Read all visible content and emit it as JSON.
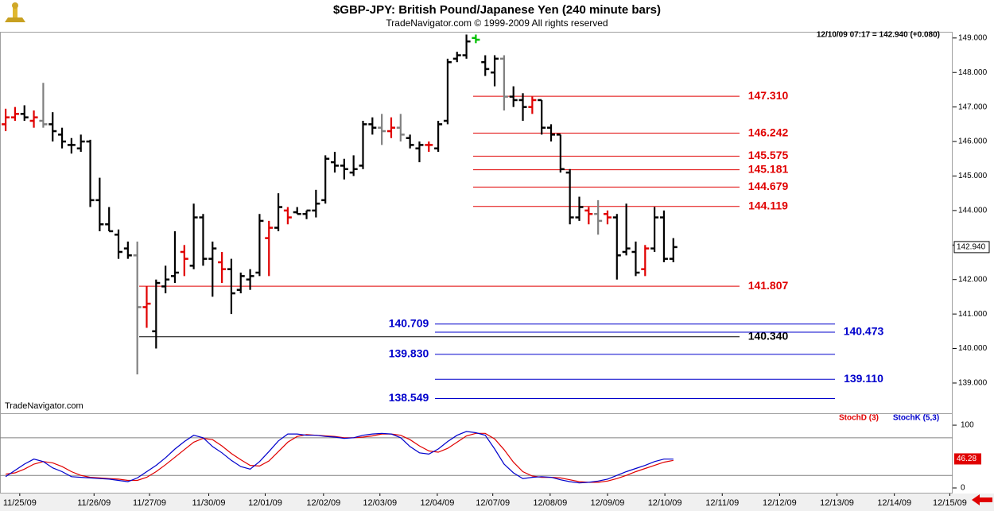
{
  "chart_data": {
    "type": "ohlc",
    "title": "$GBP-JPY:  British Pound/Japanese Yen  (240 minute bars)",
    "subtitle": "TradeNavigator.com © 1999-2009 All rights reserved",
    "info": "12/10/09 07:17 = 142.940 (+0.080)",
    "watermark": "TradeNavigator.com",
    "xlim": [
      -0.6,
      100.7
    ],
    "xticks": [
      {
        "value": 1.5,
        "label": "11/25/09"
      },
      {
        "value": 9.4,
        "label": "11/26/09"
      },
      {
        "value": 15.3,
        "label": "11/27/09"
      },
      {
        "value": 21.6,
        "label": "11/30/09"
      },
      {
        "value": 27.6,
        "label": "12/01/09"
      },
      {
        "value": 33.8,
        "label": "12/02/09"
      },
      {
        "value": 39.8,
        "label": "12/03/09"
      },
      {
        "value": 45.9,
        "label": "12/04/09"
      },
      {
        "value": 51.8,
        "label": "12/07/09"
      },
      {
        "value": 57.9,
        "label": "12/08/09"
      },
      {
        "value": 64.0,
        "label": "12/09/09"
      },
      {
        "value": 70.1,
        "label": "12/10/09"
      },
      {
        "value": 76.2,
        "label": "12/11/09"
      },
      {
        "value": 82.3,
        "label": "12/12/09"
      },
      {
        "value": 88.4,
        "label": "12/13/09"
      },
      {
        "value": 94.5,
        "label": "12/14/09"
      },
      {
        "value": 100.4,
        "label": "12/15/09"
      }
    ],
    "ylim": [
      138.17,
      149.18
    ],
    "yticks": [
      {
        "value": 139,
        "label": "139.000"
      },
      {
        "value": 140,
        "label": "140.000"
      },
      {
        "value": 141,
        "label": "141.000"
      },
      {
        "value": 142,
        "label": "142.000"
      },
      {
        "value": 143,
        "label": "143.000"
      },
      {
        "value": 144,
        "label": "144.000"
      },
      {
        "value": 145,
        "label": "145.000"
      },
      {
        "value": 146,
        "label": "146.000"
      },
      {
        "value": 147,
        "label": "147.000"
      },
      {
        "value": 148,
        "label": "148.000"
      },
      {
        "value": 149,
        "label": "149.000"
      }
    ],
    "last_price": {
      "value": 142.94,
      "label": "142.940"
    },
    "open": [
      146.5,
      146.7,
      146.8,
      146.6,
      146.6,
      146.5,
      146.2,
      145.9,
      145.8,
      146.0,
      144.3,
      143.6,
      143.3,
      142.9,
      142.7,
      141.2,
      140.5,
      141.8,
      142.1,
      142.8,
      142.4,
      143.8,
      142.6,
      142.5,
      142.3,
      141.7,
      142.0,
      142.2,
      143.2,
      143.5,
      144.0,
      143.95,
      143.9,
      144.0,
      144.3,
      145.4,
      145.3,
      145.1,
      145.3,
      146.5,
      146.4,
      146.3,
      146.4,
      146.1,
      145.8,
      145.9,
      145.8,
      146.6,
      148.4,
      148.5,
      149.0,
      148.3,
      148.0,
      148.4,
      147.3,
      147.2,
      147.0,
      147.2,
      146.4,
      146.2,
      145.1,
      143.8,
      144.0,
      143.9,
      143.9,
      143.8,
      142.8,
      142.8,
      142.3,
      142.9,
      143.8,
      142.6
    ],
    "high": [
      146.95,
      147.0,
      147.05,
      146.9,
      147.7,
      146.85,
      146.4,
      146.1,
      146.2,
      146.05,
      144.95,
      144.1,
      143.45,
      143.1,
      143.1,
      141.8,
      142.0,
      142.4,
      143.4,
      143.0,
      144.2,
      143.9,
      143.1,
      142.8,
      142.6,
      142.2,
      142.3,
      143.9,
      143.7,
      144.5,
      144.1,
      144.1,
      144.0,
      144.6,
      145.6,
      145.7,
      145.5,
      145.6,
      146.6,
      146.7,
      146.8,
      146.7,
      146.8,
      146.2,
      146.0,
      146.0,
      146.6,
      148.4,
      148.6,
      149.1,
      149.1,
      148.5,
      148.5,
      148.5,
      147.6,
      147.4,
      147.3,
      147.2,
      146.5,
      146.2,
      145.2,
      144.4,
      144.1,
      144.3,
      144.0,
      143.9,
      144.2,
      143.1,
      143.0,
      144.1,
      144.0,
      143.2
    ],
    "low": [
      146.3,
      146.6,
      146.6,
      146.4,
      146.4,
      146.0,
      145.8,
      145.65,
      145.7,
      144.1,
      143.4,
      143.4,
      142.6,
      142.6,
      139.25,
      140.6,
      140.0,
      141.6,
      141.9,
      142.1,
      142.3,
      142.4,
      141.5,
      141.9,
      141.0,
      141.6,
      141.7,
      142.1,
      142.1,
      143.4,
      143.6,
      143.9,
      143.75,
      143.8,
      144.2,
      145.1,
      144.9,
      145.0,
      145.2,
      146.2,
      145.9,
      146.1,
      146.0,
      145.8,
      145.4,
      145.7,
      145.7,
      146.5,
      148.3,
      148.4,
      148.85,
      147.9,
      147.6,
      146.9,
      147.0,
      146.6,
      146.8,
      146.2,
      146.0,
      145.1,
      143.6,
      143.7,
      143.6,
      143.3,
      143.6,
      142.0,
      142.7,
      142.1,
      142.1,
      142.8,
      142.5,
      142.5
    ],
    "close": [
      146.7,
      146.8,
      146.7,
      146.7,
      146.5,
      146.3,
      146.0,
      145.9,
      146.0,
      144.3,
      143.6,
      143.4,
      142.8,
      142.7,
      141.2,
      141.3,
      141.9,
      142.0,
      142.2,
      142.6,
      143.8,
      142.6,
      142.9,
      142.3,
      141.6,
      142.1,
      142.1,
      143.7,
      143.5,
      144.1,
      143.8,
      143.9,
      144.0,
      144.2,
      145.5,
      145.3,
      145.2,
      145.2,
      146.5,
      146.4,
      146.3,
      146.4,
      146.2,
      145.9,
      145.9,
      145.9,
      146.5,
      148.3,
      148.5,
      148.9,
      148.95,
      148.1,
      148.4,
      147.3,
      147.2,
      147.0,
      147.2,
      146.4,
      146.2,
      145.2,
      143.8,
      144.1,
      143.9,
      143.7,
      143.8,
      142.7,
      142.9,
      142.2,
      142.9,
      143.8,
      142.6,
      142.94
    ],
    "bar_colors": [
      "#e00000",
      "#e00000",
      "#000000",
      "#e00000",
      "#808080",
      "#000000",
      "#000000",
      "#000000",
      "#000000",
      "#000000",
      "#000000",
      "#000000",
      "#000000",
      "#000000",
      "#808080",
      "#e00000",
      "#000000",
      "#000000",
      "#000000",
      "#e00000",
      "#000000",
      "#000000",
      "#000000",
      "#e00000",
      "#000000",
      "#000000",
      "#000000",
      "#000000",
      "#e00000",
      "#000000",
      "#e00000",
      "#000000",
      "#000000",
      "#000000",
      "#000000",
      "#000000",
      "#000000",
      "#000000",
      "#000000",
      "#000000",
      "#808080",
      "#e00000",
      "#808080",
      "#000000",
      "#000000",
      "#e00000",
      "#000000",
      "#000000",
      "#000000",
      "#000000",
      "#00c000",
      "#000000",
      "#000000",
      "#808080",
      "#000000",
      "#000000",
      "#e00000",
      "#000000",
      "#000000",
      "#000000",
      "#000000",
      "#000000",
      "#e00000",
      "#808080",
      "#e00000",
      "#000000",
      "#000000",
      "#000000",
      "#e00000",
      "#000000",
      "#000000",
      "#000000"
    ],
    "levels": [
      {
        "value": 147.31,
        "label": "147.310",
        "color": "#e00000"
      },
      {
        "value": 146.242,
        "label": "146.242",
        "color": "#e00000"
      },
      {
        "value": 145.575,
        "label": "145.575",
        "color": "#e00000"
      },
      {
        "value": 145.181,
        "label": "145.181",
        "color": "#e00000"
      },
      {
        "value": 144.679,
        "label": "144.679",
        "color": "#e00000"
      },
      {
        "value": 144.119,
        "label": "144.119",
        "color": "#e00000"
      },
      {
        "value": 141.807,
        "label": "141.807",
        "color": "#e00000"
      },
      {
        "value": 140.34,
        "label": "140.340",
        "color": "#000000"
      },
      {
        "value": 140.709,
        "label": "140.709",
        "color": "#0000cc"
      },
      {
        "value": 140.473,
        "label": "140.473",
        "color": "#0000cc"
      },
      {
        "value": 139.83,
        "label": "139.830",
        "color": "#0000cc"
      },
      {
        "value": 139.11,
        "label": "139.110",
        "color": "#0000cc"
      },
      {
        "value": 138.549,
        "label": "138.549",
        "color": "#0000cc"
      }
    ],
    "indicator": {
      "type": "line",
      "ylim": [
        -7.6,
        116.5
      ],
      "yticks": [
        0,
        100
      ],
      "ref_lines": [
        80,
        20
      ],
      "last_value": 46.28,
      "series": [
        {
          "name": "StochD (3)",
          "color": "#e00000",
          "values": [
            22,
            24,
            30,
            38,
            42,
            40,
            34,
            26,
            20,
            17,
            16,
            15,
            14,
            12,
            12,
            17,
            26,
            37,
            49,
            61,
            73,
            79,
            77,
            67,
            55,
            45,
            36,
            35,
            43,
            58,
            73,
            82,
            85,
            84,
            83,
            82,
            80,
            80,
            81,
            83,
            86,
            86,
            84,
            77,
            67,
            59,
            57,
            63,
            73,
            83,
            87,
            87,
            78,
            61,
            41,
            26,
            19,
            17,
            17,
            16,
            13,
            10,
            9,
            9,
            11,
            15,
            20,
            26,
            31,
            36,
            41,
            44
          ]
        },
        {
          "name": "StochK (5,3)",
          "color": "#0000cc",
          "values": [
            18,
            28,
            38,
            46,
            42,
            32,
            26,
            18,
            17,
            16,
            15,
            14,
            12,
            10,
            16,
            26,
            36,
            48,
            62,
            74,
            84,
            80,
            66,
            56,
            44,
            34,
            30,
            42,
            58,
            75,
            86,
            86,
            84,
            84,
            82,
            81,
            79,
            80,
            84,
            86,
            87,
            86,
            80,
            66,
            56,
            54,
            62,
            74,
            84,
            90,
            88,
            84,
            62,
            38,
            24,
            15,
            17,
            18,
            17,
            13,
            10,
            8,
            9,
            11,
            14,
            20,
            26,
            31,
            36,
            42,
            46,
            46
          ]
        }
      ]
    }
  }
}
